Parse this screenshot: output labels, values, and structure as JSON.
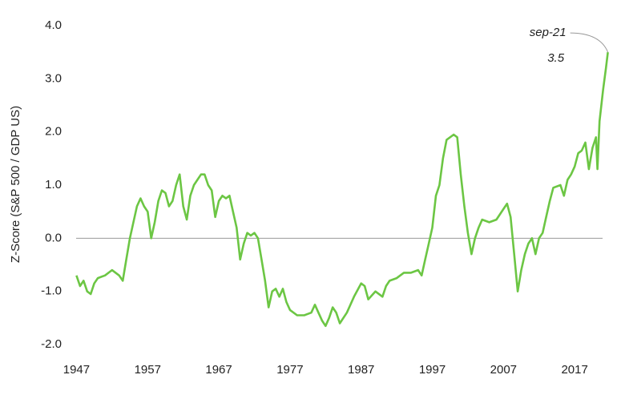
{
  "chart_data": {
    "type": "line",
    "y_label": "Z-Score (S&P 500 / GDP US)",
    "xlim": [
      1946.5,
      2022.5
    ],
    "xticks": [
      1947,
      1957,
      1967,
      1977,
      1987,
      1997,
      2007,
      2017
    ],
    "ylim": [
      -2,
      4
    ],
    "yticks": [
      {
        "value": -2,
        "label": "-2.0"
      },
      {
        "value": -1,
        "label": "-1.0"
      },
      {
        "value": 0,
        "label": "0.0"
      },
      {
        "value": 1,
        "label": "1.0"
      },
      {
        "value": 2,
        "label": "2.0"
      },
      {
        "value": 3,
        "label": "3.0"
      },
      {
        "value": 4,
        "label": "4.0"
      }
    ],
    "zero_line": true,
    "series": [
      {
        "color": "#6cc644",
        "x": [
          1947,
          1947.5,
          1948,
          1948.5,
          1949,
          1949.5,
          1950,
          1951,
          1952,
          1953,
          1953.5,
          1954,
          1954.5,
          1955,
          1955.5,
          1956,
          1956.5,
          1957,
          1957.5,
          1958,
          1958.5,
          1959,
          1959.5,
          1960,
          1960.5,
          1961,
          1961.5,
          1962,
          1962.5,
          1963,
          1963.5,
          1964,
          1964.5,
          1965,
          1965.5,
          1966,
          1966.5,
          1967,
          1967.5,
          1968,
          1968.5,
          1969,
          1969.5,
          1970,
          1970.5,
          1971,
          1971.5,
          1972,
          1972.5,
          1973,
          1973.5,
          1974,
          1974.5,
          1975,
          1975.5,
          1976,
          1976.5,
          1977,
          1978,
          1979,
          1980,
          1980.5,
          1981,
          1981.5,
          1982,
          1982.5,
          1983,
          1983.5,
          1984,
          1985,
          1986,
          1987,
          1987.5,
          1988,
          1989,
          1990,
          1990.5,
          1991,
          1992,
          1993,
          1994,
          1995,
          1995.5,
          1996,
          1996.5,
          1997,
          1997.5,
          1998,
          1998.5,
          1999,
          2000,
          2000.5,
          2001,
          2001.5,
          2002,
          2002.5,
          2003,
          2003.5,
          2004,
          2005,
          2006,
          2007,
          2007.5,
          2008,
          2008.5,
          2009,
          2009.5,
          2010,
          2010.5,
          2011,
          2011.5,
          2012,
          2012.5,
          2013,
          2013.5,
          2014,
          2015,
          2015.5,
          2016,
          2016.5,
          2017,
          2017.5,
          2018,
          2018.5,
          2019,
          2019.5,
          2020,
          2020.2,
          2020.5,
          2021,
          2021.4,
          2021.67
        ],
        "values": [
          -0.7,
          -0.9,
          -0.8,
          -1.0,
          -1.05,
          -0.85,
          -0.75,
          -0.7,
          -0.6,
          -0.7,
          -0.8,
          -0.4,
          0.0,
          0.3,
          0.6,
          0.75,
          0.6,
          0.5,
          0.0,
          0.3,
          0.7,
          0.9,
          0.85,
          0.6,
          0.7,
          1.0,
          1.2,
          0.6,
          0.35,
          0.8,
          1.0,
          1.1,
          1.2,
          1.2,
          1.0,
          0.9,
          0.4,
          0.7,
          0.8,
          0.75,
          0.8,
          0.5,
          0.2,
          -0.4,
          -0.1,
          0.1,
          0.05,
          0.1,
          0.0,
          -0.4,
          -0.8,
          -1.3,
          -1.0,
          -0.95,
          -1.1,
          -0.95,
          -1.2,
          -1.35,
          -1.45,
          -1.45,
          -1.4,
          -1.25,
          -1.4,
          -1.55,
          -1.65,
          -1.5,
          -1.3,
          -1.4,
          -1.6,
          -1.4,
          -1.1,
          -0.85,
          -0.9,
          -1.15,
          -1.0,
          -1.1,
          -0.9,
          -0.8,
          -0.75,
          -0.65,
          -0.65,
          -0.6,
          -0.7,
          -0.4,
          -0.1,
          0.2,
          0.8,
          1.0,
          1.5,
          1.85,
          1.95,
          1.9,
          1.2,
          0.6,
          0.1,
          -0.3,
          0.0,
          0.2,
          0.35,
          0.3,
          0.35,
          0.55,
          0.65,
          0.4,
          -0.3,
          -1.0,
          -0.6,
          -0.3,
          -0.1,
          0.0,
          -0.3,
          0.0,
          0.1,
          0.4,
          0.7,
          0.95,
          1.0,
          0.8,
          1.1,
          1.2,
          1.35,
          1.6,
          1.65,
          1.8,
          1.3,
          1.7,
          1.9,
          1.3,
          2.2,
          2.8,
          3.2,
          3.5
        ]
      }
    ],
    "annotation": {
      "text": "sep-21",
      "x": 2021.67,
      "y": 3.5
    }
  }
}
